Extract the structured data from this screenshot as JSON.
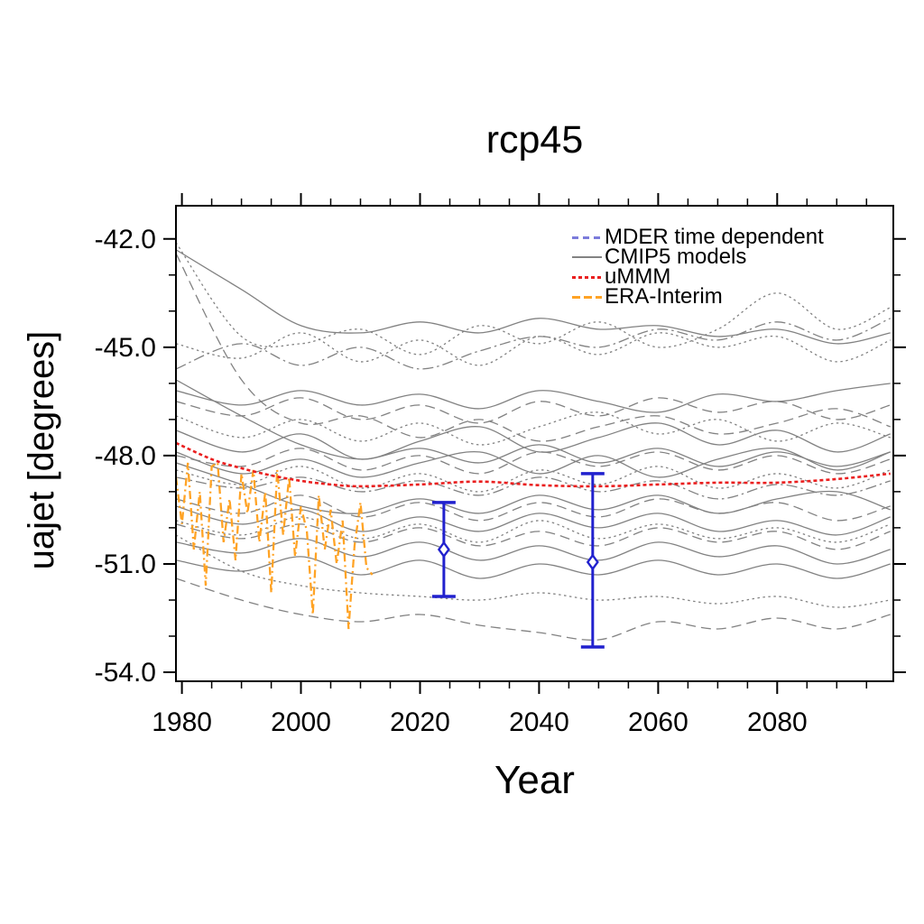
{
  "title": "rcp45",
  "xlabel": "Year",
  "ylabel": "uajet [degrees]",
  "legend": [
    {
      "label": "MDER time dependent",
      "color": "#7B7BDB",
      "style": "dash"
    },
    {
      "label": "CMIP5 models",
      "color": "#828282",
      "style": "solid"
    },
    {
      "label": "uMMM",
      "color": "#EA1F1F",
      "style": "shortdash"
    },
    {
      "label": "ERA-Interim",
      "color": "#FFA325",
      "style": "dashdot"
    }
  ],
  "chart_data": {
    "type": "line",
    "title": "rcp45",
    "xlabel": "Year",
    "ylabel": "uajet [degrees]",
    "xlim": [
      1979,
      2099.5
    ],
    "ylim": [
      -54.25,
      -41.08
    ],
    "grid": false,
    "legend_position": "top-right-inside",
    "x_ticks": [
      {
        "v": 1980,
        "label": "1980"
      },
      {
        "v": 2000,
        "label": "2000"
      },
      {
        "v": 2020,
        "label": "2020"
      },
      {
        "v": 2040,
        "label": "2040"
      },
      {
        "v": 2060,
        "label": "2060"
      },
      {
        "v": 2080,
        "label": "2080"
      }
    ],
    "x_minor_step": 5,
    "y_ticks": [
      {
        "v": -42,
        "label": "-42.0"
      },
      {
        "v": -45,
        "label": "-45.0"
      },
      {
        "v": -48,
        "label": "-48.0"
      },
      {
        "v": -51,
        "label": "-51.0"
      },
      {
        "v": -54,
        "label": "-54.0"
      }
    ],
    "y_minor_step": 1,
    "colors": {
      "cmip5": "#828282",
      "ummm": "#EA1F1F",
      "era_interim": "#FFA325",
      "mder": "#2121CE",
      "axis": "#000000"
    },
    "series": {
      "cmip5_models": {
        "name": "CMIP5 models",
        "years": [
          1979,
          1990,
          2000,
          2010,
          2020,
          2030,
          2040,
          2050,
          2060,
          2070,
          2080,
          2090,
          2099
        ],
        "lines": [
          {
            "style": "solid",
            "values": [
              -42.3,
              -43.4,
              -44.4,
              -44.6,
              -44.3,
              -44.6,
              -44.2,
              -44.5,
              -44.4,
              -44.7,
              -44.5,
              -44.9,
              -44.6
            ]
          },
          {
            "style": "dot",
            "values": [
              -42.1,
              -44.7,
              -44.9,
              -44.5,
              -45.2,
              -44.4,
              -44.9,
              -44.3,
              -45.0,
              -44.5,
              -43.5,
              -44.5,
              -43.9
            ]
          },
          {
            "style": "dot",
            "values": [
              -44.9,
              -45.3,
              -44.6,
              -45.4,
              -44.8,
              -45.5,
              -44.7,
              -45.2,
              -44.6,
              -45.0,
              -44.7,
              -45.4,
              -44.8
            ]
          },
          {
            "style": "dash",
            "values": [
              -42.4,
              -45.9,
              -47.1,
              -46.9,
              -47.5,
              -47.0,
              -47.6,
              -47.2,
              -46.9,
              -47.4,
              -47.1,
              -46.7,
              -47.2
            ]
          },
          {
            "style": "solid",
            "values": [
              -46.2,
              -46.6,
              -46.2,
              -46.6,
              -46.3,
              -46.7,
              -46.2,
              -46.5,
              -46.8,
              -46.3,
              -46.5,
              -46.2,
              -46.0
            ]
          },
          {
            "style": "dashdot",
            "values": [
              -45.6,
              -44.9,
              -45.5,
              -45.0,
              -45.6,
              -45.1,
              -44.7,
              -45.0,
              -44.5,
              -44.8,
              -44.3,
              -44.8,
              -44.2
            ]
          },
          {
            "style": "solid",
            "values": [
              -47.3,
              -47.9,
              -47.4,
              -48.1,
              -47.6,
              -47.2,
              -47.9,
              -47.5,
              -47.1,
              -47.7,
              -47.3,
              -47.9,
              -47.4
            ]
          },
          {
            "style": "solid",
            "values": [
              -47.9,
              -48.5,
              -48.1,
              -48.6,
              -48.2,
              -47.9,
              -48.5,
              -48.0,
              -48.6,
              -48.1,
              -47.8,
              -48.4,
              -47.9
            ]
          },
          {
            "style": "dashdot",
            "values": [
              -48.6,
              -48.9,
              -48.6,
              -49.0,
              -48.7,
              -49.1,
              -48.6,
              -49.0,
              -48.7,
              -49.2,
              -48.8,
              -49.1,
              -48.7
            ]
          },
          {
            "style": "solid",
            "values": [
              -48.2,
              -48.8,
              -49.4,
              -49.6,
              -49.2,
              -49.6,
              -49.1,
              -49.5,
              -49.1,
              -49.6,
              -49.2,
              -49.0,
              -49.5
            ]
          },
          {
            "style": "dot",
            "values": [
              -46.9,
              -47.5,
              -47.0,
              -47.6,
              -47.1,
              -47.7,
              -47.2,
              -46.8,
              -47.4,
              -47.0,
              -47.6,
              -47.1,
              -47.5
            ]
          },
          {
            "style": "solid",
            "values": [
              -49.4,
              -49.9,
              -49.5,
              -50.1,
              -49.7,
              -50.1,
              -49.6,
              -50.0,
              -49.6,
              -50.1,
              -49.8,
              -50.2,
              -49.7
            ]
          },
          {
            "style": "dash",
            "values": [
              -49.9,
              -50.3,
              -49.9,
              -50.4,
              -50.0,
              -50.5,
              -50.1,
              -50.5,
              -50.0,
              -50.4,
              -50.1,
              -50.6,
              -50.1
            ]
          },
          {
            "style": "solid",
            "values": [
              -50.4,
              -50.7,
              -50.3,
              -50.8,
              -50.4,
              -50.9,
              -50.5,
              -50.9,
              -50.4,
              -50.8,
              -50.5,
              -51.0,
              -50.6
            ]
          },
          {
            "style": "solid",
            "values": [
              -50.9,
              -51.2,
              -50.8,
              -51.3,
              -50.9,
              -51.4,
              -51.0,
              -51.3,
              -50.9,
              -51.3,
              -51.0,
              -51.4,
              -51.0
            ]
          },
          {
            "style": "dash",
            "values": [
              -51.4,
              -52.0,
              -52.4,
              -52.6,
              -52.4,
              -52.7,
              -52.9,
              -53.1,
              -52.6,
              -52.8,
              -52.5,
              -52.8,
              -52.4
            ]
          },
          {
            "style": "dot",
            "values": [
              -50.2,
              -51.2,
              -51.6,
              -51.8,
              -51.9,
              -52.0,
              -51.8,
              -52.0,
              -51.9,
              -52.1,
              -51.9,
              -52.2,
              -52.0
            ]
          },
          {
            "style": "dash",
            "values": [
              -49.2,
              -49.6,
              -49.1,
              -49.7,
              -49.3,
              -49.8,
              -49.3,
              -49.7,
              -49.2,
              -49.6,
              -49.3,
              -49.8,
              -49.4
            ]
          },
          {
            "style": "dot",
            "values": [
              -48.4,
              -48.8,
              -48.3,
              -48.9,
              -48.5,
              -49.0,
              -48.4,
              -48.8,
              -48.3,
              -48.9,
              -48.5,
              -48.9,
              -48.4
            ]
          },
          {
            "style": "dash",
            "values": [
              -46.5,
              -46.9,
              -46.4,
              -47.0,
              -46.6,
              -47.1,
              -46.5,
              -46.9,
              -46.4,
              -46.8,
              -46.5,
              -47.0,
              -46.6
            ]
          },
          {
            "style": "dot",
            "values": [
              -49.8,
              -50.2,
              -49.7,
              -50.3,
              -49.9,
              -50.4,
              -49.8,
              -50.3,
              -49.9,
              -50.3,
              -50.0,
              -50.4,
              -49.9
            ]
          },
          {
            "style": "dash",
            "values": [
              -48.0,
              -48.3,
              -47.8,
              -48.4,
              -48.0,
              -48.5,
              -47.9,
              -48.3,
              -47.9,
              -48.4,
              -48.0,
              -48.5,
              -48.1
            ]
          },
          {
            "style": "solid",
            "values": [
              -45.9,
              -46.9,
              -47.7,
              -48.1,
              -47.8,
              -48.2,
              -47.7,
              -48.2,
              -47.8,
              -48.3,
              -47.9,
              -48.3,
              -47.9
            ]
          }
        ]
      },
      "ummm": {
        "name": "uMMM",
        "years": [
          1979,
          1985,
          1990,
          1995,
          2000,
          2005,
          2010,
          2020,
          2030,
          2040,
          2050,
          2060,
          2070,
          2080,
          2090,
          2099
        ],
        "values": [
          -47.65,
          -48.1,
          -48.35,
          -48.55,
          -48.7,
          -48.8,
          -48.85,
          -48.8,
          -48.72,
          -48.82,
          -48.85,
          -48.8,
          -48.75,
          -48.75,
          -48.65,
          -48.5
        ]
      },
      "era_interim": {
        "name": "ERA-Interim",
        "years": [
          1979,
          1980,
          1981,
          1982,
          1983,
          1984,
          1985,
          1986,
          1987,
          1988,
          1989,
          1990,
          1991,
          1992,
          1993,
          1994,
          1995,
          1996,
          1997,
          1998,
          1999,
          2000,
          2001,
          2002,
          2003,
          2004,
          2005,
          2006,
          2007,
          2008,
          2009,
          2010,
          2011,
          2012
        ],
        "values": [
          -48.6,
          -49.9,
          -48.2,
          -50.6,
          -49.0,
          -51.6,
          -48.3,
          -48.2,
          -50.4,
          -49.2,
          -50.9,
          -48.5,
          -49.6,
          -48.4,
          -50.4,
          -49.0,
          -51.8,
          -48.4,
          -50.2,
          -48.6,
          -50.8,
          -49.4,
          -50.1,
          -52.4,
          -49.1,
          -50.6,
          -49.5,
          -51.0,
          -49.8,
          -52.8,
          -50.5,
          -49.3,
          -51.1,
          -51.3
        ]
      },
      "mder_estimates": {
        "name": "MDER time dependent",
        "points": [
          {
            "year": 2024,
            "value": -50.6,
            "high": -49.3,
            "low": -51.9
          },
          {
            "year": 2049,
            "value": -50.95,
            "high": -48.5,
            "low": -53.3
          }
        ]
      }
    }
  }
}
